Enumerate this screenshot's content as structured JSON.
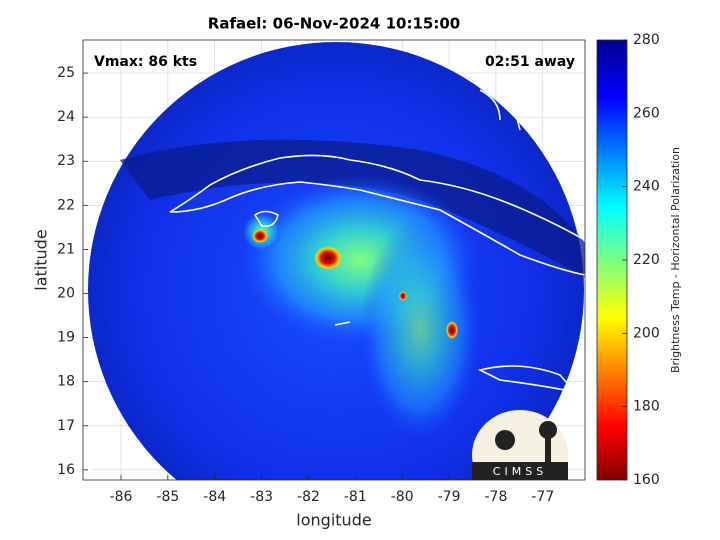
{
  "title": "Rafael: 06-Nov-2024 10:15:00",
  "annotations": {
    "vmax": "Vmax: 86 kts",
    "time_away": "02:51 away"
  },
  "map": {
    "xlabel": "longitude",
    "ylabel": "latitude",
    "xlim": [
      -86.81,
      -76.1
    ],
    "ylim": [
      15.77,
      25.75
    ],
    "xticks": [
      -86,
      -85,
      -84,
      -83,
      -82,
      -81,
      -80,
      -79,
      -78,
      -77
    ],
    "yticks": [
      16,
      17,
      18,
      19,
      20,
      21,
      22,
      23,
      24,
      25
    ],
    "grid": true
  },
  "colorbar": {
    "label": "Brightness Temp - Horizontal Polarization",
    "lim": [
      160,
      280
    ],
    "ticks": [
      160,
      180,
      200,
      220,
      240,
      260,
      280
    ]
  },
  "logo": {
    "text": "CIMSS"
  }
}
